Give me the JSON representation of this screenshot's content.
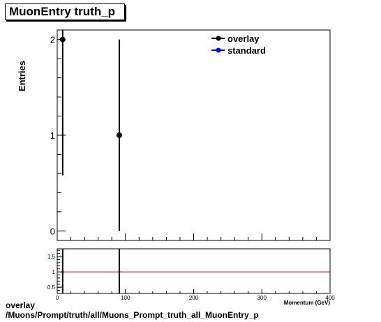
{
  "title": "MuonEntry truth_p",
  "footer": {
    "line1": "overlay",
    "line2": "/Muons/Prompt/truth/all/Muons_Prompt_truth_all_MuonEntry_p"
  },
  "chart_data": [
    {
      "type": "scatter",
      "ylabel": "Entries",
      "xlim": [
        0,
        400
      ],
      "ylim": [
        -0.1,
        2.1
      ],
      "y_ticks": [
        0,
        1,
        2
      ],
      "legend": {
        "position": "top-right",
        "entries": [
          {
            "name": "overlay",
            "color": "#000000"
          },
          {
            "name": "standard",
            "color": "#0000ff"
          }
        ]
      },
      "series": [
        {
          "name": "overlay",
          "color": "#000000",
          "points": [
            {
              "x": 8,
              "y": 2,
              "err_low": 1.42,
              "err_high": 1.42
            },
            {
              "x": 91,
              "y": 1,
              "err_low": 1.0,
              "err_high": 1.0
            }
          ]
        }
      ]
    },
    {
      "type": "line",
      "xlabel": "Momentum (GeV)",
      "xlim": [
        0,
        400
      ],
      "ylim": [
        0.3,
        1.75
      ],
      "y_tick_labels": [
        "0.5",
        "1",
        "1.5"
      ],
      "x_tick_labels": [
        "0",
        "100",
        "200",
        "300",
        "400"
      ],
      "reference_line": {
        "y": 1,
        "color": "#cc0000"
      },
      "error_bars": [
        {
          "x": 8,
          "y": 1
        },
        {
          "x": 91,
          "y": 1
        }
      ]
    }
  ]
}
